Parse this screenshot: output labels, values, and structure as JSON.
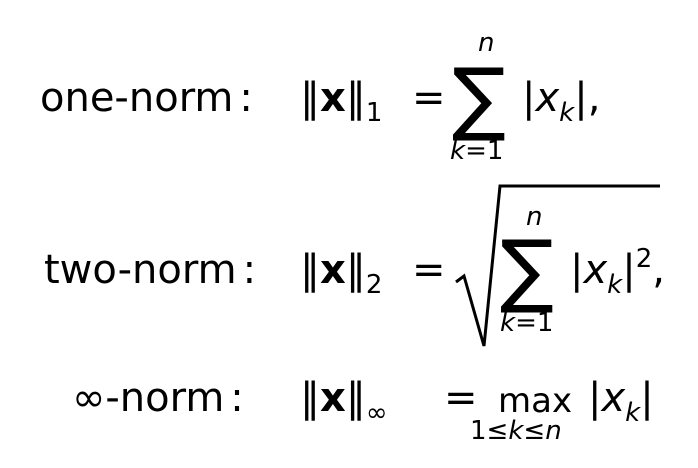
{
  "formulas": {
    "one_norm": {
      "label": "one-norm",
      "colon": ":",
      "lhs_open": "‖",
      "x": "x",
      "lhs_close": "‖",
      "sub": "1",
      "equals": "=",
      "sum_symbol": "∑",
      "upper": "n",
      "lower_var": "k",
      "lower_eq": "=1",
      "term_open": "|",
      "term_var": "x",
      "term_sub": "k",
      "term_close": "|,"
    },
    "two_norm": {
      "label": "two-norm",
      "colon": ":",
      "lhs_open": "‖",
      "x": "x",
      "lhs_close": "‖",
      "sub": "2",
      "equals": "=",
      "sum_symbol": "∑",
      "upper": "n",
      "lower_var": "k",
      "lower_eq": "=1",
      "term_open": "|",
      "term_var": "x",
      "term_sub": "k",
      "term_close": "|",
      "term_sup": "2",
      "trailing": ","
    },
    "inf_norm": {
      "label_symbol": "∞",
      "label": "-norm",
      "colon": ":",
      "lhs_open": "‖",
      "x": "x",
      "lhs_close": "‖",
      "sub": "∞",
      "equals": "=",
      "max_word": "max",
      "lower": "1≤",
      "lower_var": "k",
      "lower_mid": "≤",
      "lower_end": "n",
      "term_open": "|",
      "term_var": "x",
      "term_sub": "k",
      "term_close": "|"
    }
  }
}
